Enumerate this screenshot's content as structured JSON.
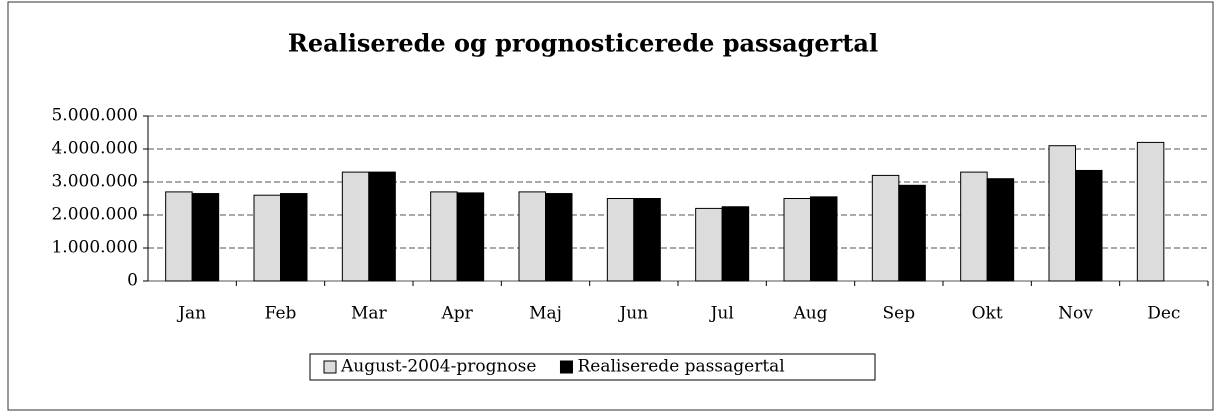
{
  "chart_data": {
    "type": "bar",
    "title": "Realiserede og prognosticerede passagertal",
    "categories": [
      "Jan",
      "Feb",
      "Mar",
      "Apr",
      "Maj",
      "Jun",
      "Jul",
      "Aug",
      "Sep",
      "Okt",
      "Nov",
      "Dec"
    ],
    "series": [
      {
        "name": "August-2004-prognose",
        "color": "#dcdcdc",
        "values": [
          2700000,
          2600000,
          3300000,
          2700000,
          2700000,
          2500000,
          2200000,
          2500000,
          3200000,
          3300000,
          4100000,
          4200000
        ]
      },
      {
        "name": "Realiserede passagertal",
        "color": "#000000",
        "values": [
          2650000,
          2650000,
          3300000,
          2670000,
          2650000,
          2500000,
          2250000,
          2550000,
          2900000,
          3100000,
          3350000,
          null
        ]
      }
    ],
    "ylim": [
      0,
      5000000
    ],
    "yticks": [
      0,
      {
        "value": 1000000,
        "label": "1.000.000"
      },
      {
        "value": 2000000,
        "label": "2.000.000"
      },
      {
        "value": 3000000,
        "label": "3.000.000"
      },
      {
        "value": 4000000,
        "label": "4.000.000"
      },
      {
        "value": 5000000,
        "label": "5.000.000"
      }
    ],
    "grid": true,
    "legend": "bottom"
  }
}
